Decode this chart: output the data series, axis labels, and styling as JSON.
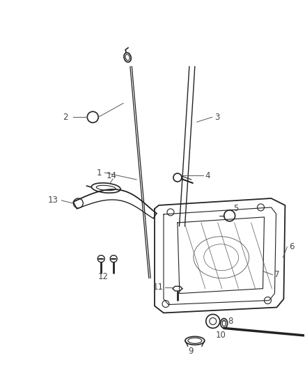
{
  "background_color": "#ffffff",
  "line_color": "#555555",
  "dark_color": "#222222",
  "label_color": "#444444",
  "figsize": [
    4.38,
    5.33
  ],
  "dpi": 100
}
